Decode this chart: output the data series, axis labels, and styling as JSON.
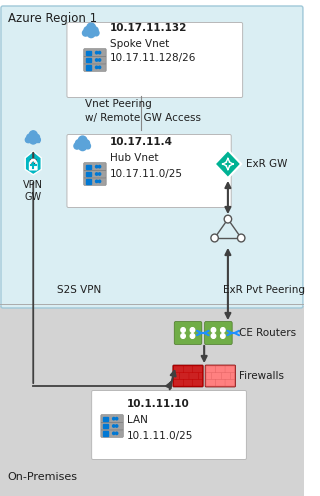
{
  "azure_bg_color": "#daeef3",
  "onprem_bg_color": "#d3d3d3",
  "azure_label": "Azure Region 1",
  "onprem_label": "On-Premises",
  "spoke_ip": "10.17.11.132",
  "spoke_name": "Spoke Vnet",
  "spoke_subnet": "10.17.11.128/26",
  "hub_ip": "10.17.11.4",
  "hub_name": "Hub Vnet",
  "hub_subnet": "10.17.11.0/25",
  "peering_label": "Vnet Peering\nw/ Remote GW Access",
  "s2s_label": "S2S VPN",
  "exr_pvt_label": "ExR Pvt Peering",
  "vpn_label": "VPN\nGW",
  "exr_gw_label": "ExR GW",
  "ce_label": "CE Routers",
  "fw_label": "Firewalls",
  "lan_ip": "10.1.11.10",
  "lan_name": "LAN",
  "lan_subnet": "10.1.11.0/25",
  "cloud_color_blue": "#1e90ff",
  "cloud_color_light": "#87ceeb",
  "vpn_gw_color": "#00b7c3",
  "exr_gw_color": "#00b294",
  "ce_green": "#70ad47",
  "fw_red": "#c00000",
  "fw_pink": "#e57373",
  "server_gray": "#a0a0a0",
  "server_stripe": "#0078d4",
  "text_dark": "#1f1f1f",
  "arrow_color": "#404040",
  "border_color": "#a0c8d8"
}
